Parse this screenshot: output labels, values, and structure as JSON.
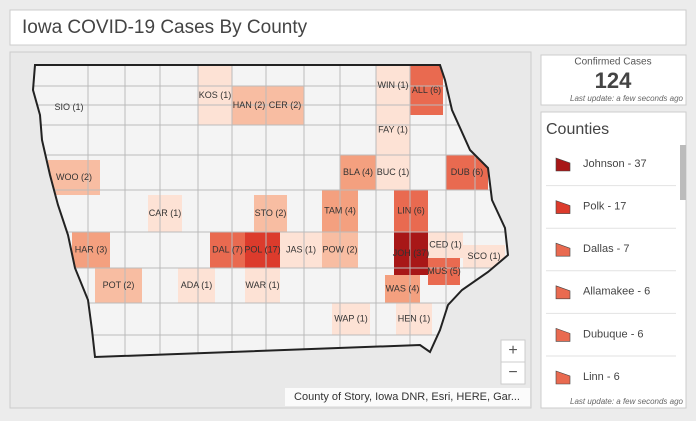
{
  "header": {
    "title": "Iowa COVID-19 Cases By County"
  },
  "summary": {
    "label": "Confirmed Cases",
    "value": 124,
    "updated": "Last update: a few seconds ago"
  },
  "counties_panel": {
    "title": "Counties",
    "items": [
      "Johnson - 37",
      "Polk - 17",
      "Dallas - 7",
      "Allamakee - 6",
      "Dubuque - 6",
      "Linn - 6"
    ],
    "updated": "Last update: a few seconds ago"
  },
  "map": {
    "labels": [
      "SIO (1)",
      "KOS (1)",
      "HAN (2)",
      "CER (2)",
      "WIN (1)",
      "ALL (6)",
      "FAY (1)",
      "BLA (4)",
      "BUC (1)",
      "DUB (6)",
      "WOO (2)",
      "CAR (1)",
      "STO (2)",
      "TAM (4)",
      "LIN (6)",
      "HAR (3)",
      "DAL (7)",
      "POL (17)",
      "JAS (1)",
      "POW (2)",
      "JOH (37)",
      "CED (1)",
      "SCO (1)",
      "MUS (5)",
      "POT (2)",
      "ADA (1)",
      "WAR (1)",
      "WAS (4)",
      "WAP (1)",
      "HEN (1)"
    ],
    "zoom_in": "+",
    "zoom_out": "−",
    "attribution": "County of Story, Iowa DNR, Esri, HERE, Gar..."
  }
}
